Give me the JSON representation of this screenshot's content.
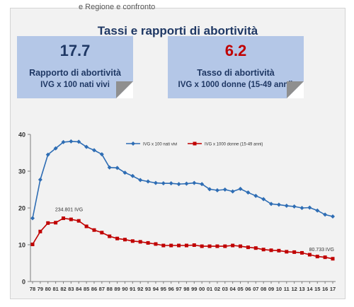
{
  "header_cut_text": "e Regione e confronto",
  "title": "Tassi e rapporti di abortività",
  "cards": [
    {
      "value": "17.7",
      "line1": "Rapporto di abortività",
      "line2": "IVG x 100 nati vivi",
      "color": "#1f3864"
    },
    {
      "value": "6.2",
      "line1": "Tasso di abortività",
      "line2": "IVG x 1000 donne (15-49 anni)",
      "color": "#c00000"
    }
  ],
  "chart_data": {
    "type": "line",
    "categories": [
      "78",
      "79",
      "80",
      "81",
      "82",
      "83",
      "84",
      "85",
      "86",
      "87",
      "88",
      "89",
      "90",
      "91",
      "92",
      "93",
      "94",
      "95",
      "96",
      "97",
      "98",
      "99",
      "00",
      "01",
      "02",
      "03",
      "04",
      "05",
      "06",
      "07",
      "08",
      "09",
      "10",
      "11",
      "12",
      "13",
      "14",
      "15",
      "16",
      "17"
    ],
    "series": [
      {
        "name": "IVG x 100 nati vivi",
        "color": "#2e6db4",
        "marker": "diamond",
        "values": [
          17.2,
          27.7,
          34.5,
          36.2,
          37.9,
          38.1,
          38.0,
          36.6,
          35.7,
          34.6,
          31.0,
          30.9,
          29.6,
          28.7,
          27.6,
          27.2,
          26.8,
          26.7,
          26.7,
          26.5,
          26.6,
          26.8,
          26.5,
          25.1,
          24.8,
          25.0,
          24.5,
          25.2,
          24.2,
          23.3,
          22.4,
          21.1,
          20.9,
          20.6,
          20.4,
          20.0,
          20.1,
          19.3,
          18.2,
          17.7
        ]
      },
      {
        "name": "IVG x 1000 donne (15-49 anni)",
        "color": "#c00000",
        "marker": "square",
        "values": [
          10.1,
          13.6,
          15.9,
          16.0,
          17.2,
          16.9,
          16.5,
          15.0,
          14.0,
          13.3,
          12.3,
          11.7,
          11.4,
          11.0,
          10.8,
          10.5,
          10.2,
          9.8,
          9.8,
          9.8,
          9.8,
          9.9,
          9.6,
          9.6,
          9.6,
          9.6,
          9.8,
          9.6,
          9.3,
          9.1,
          8.7,
          8.5,
          8.4,
          8.1,
          8.0,
          7.8,
          7.3,
          6.8,
          6.6,
          6.2
        ]
      }
    ],
    "annotations": [
      {
        "text": "234.801 IVG",
        "at_index": 4
      },
      {
        "text": "80.733 IVG",
        "at_index": 39
      }
    ],
    "ylim": [
      0,
      40
    ],
    "yticks": [
      0,
      10,
      20,
      30,
      40
    ],
    "grid": false,
    "legend_position": "top"
  }
}
